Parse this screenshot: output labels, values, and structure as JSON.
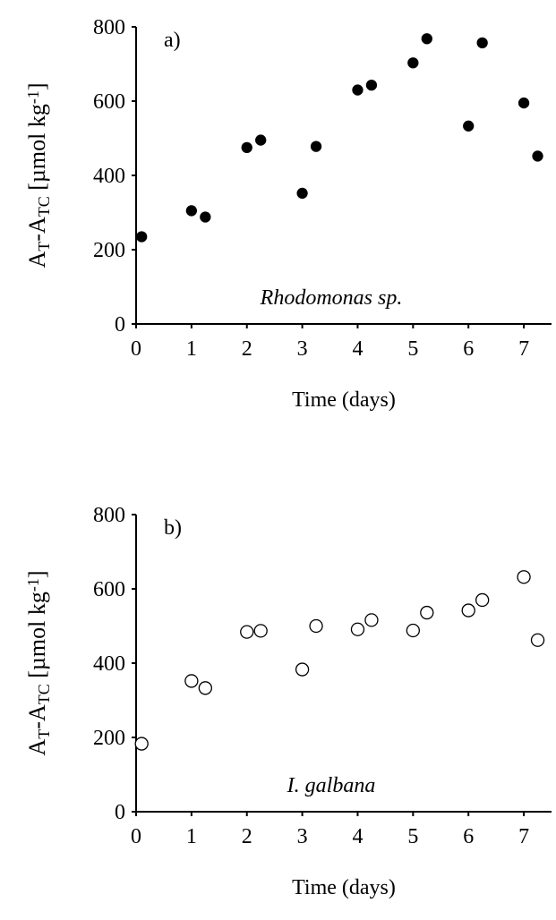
{
  "chart_data": [
    {
      "type": "scatter",
      "label": "a)",
      "annotation": "Rhodomonas sp.",
      "xlabel": "Time (days)",
      "ylabel": [
        "A",
        "T",
        "-A",
        "TC",
        " [µmol kg",
        "-1",
        "]"
      ],
      "xlim": [
        0,
        7.5
      ],
      "xticks": [
        0,
        1,
        2,
        3,
        4,
        5,
        6,
        7
      ],
      "ylim": [
        0,
        800
      ],
      "yticks": [
        0,
        200,
        400,
        600,
        800
      ],
      "marker": "filled",
      "color": "#000000",
      "x": [
        0.1,
        1,
        1.25,
        2,
        2.25,
        3,
        3.25,
        4,
        4.25,
        5,
        5.25,
        6,
        6.25,
        7,
        7.25
      ],
      "y": [
        235,
        305,
        288,
        475,
        495,
        352,
        478,
        630,
        643,
        703,
        768,
        533,
        757,
        595,
        452
      ]
    },
    {
      "type": "scatter",
      "label": "b)",
      "annotation": "I. galbana",
      "xlabel": "Time (days)",
      "ylabel": [
        "A",
        "T",
        "-A",
        "TC",
        " [µmol kg",
        "-1",
        "]"
      ],
      "xlim": [
        0,
        7.5
      ],
      "xticks": [
        0,
        1,
        2,
        3,
        4,
        5,
        6,
        7
      ],
      "ylim": [
        0,
        800
      ],
      "yticks": [
        0,
        200,
        400,
        600,
        800
      ],
      "marker": "hollow",
      "color": "#000000",
      "x": [
        0.1,
        1,
        1.25,
        2,
        2.25,
        3,
        3.25,
        4,
        4.25,
        5,
        5.25,
        6,
        6.25,
        7,
        7.25
      ],
      "y": [
        183,
        352,
        333,
        484,
        487,
        383,
        500,
        491,
        516,
        488,
        536,
        542,
        570,
        632,
        462
      ]
    }
  ]
}
